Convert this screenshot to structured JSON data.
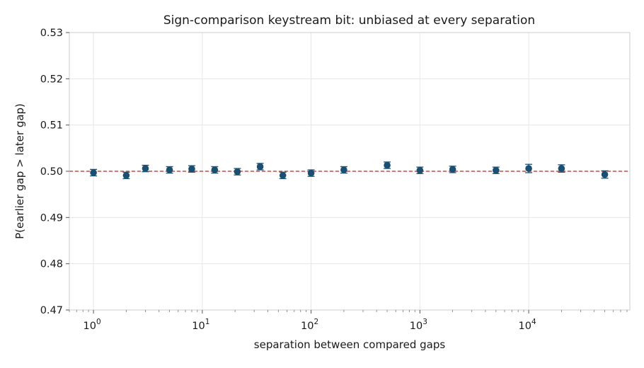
{
  "chart_data": {
    "type": "scatter",
    "title": "Sign-comparison keystream bit: unbiased at every separation",
    "xlabel": "separation between compared gaps",
    "ylabel": "P(earlier gap > later gap)",
    "xscale": "log",
    "xlim": [
      0.6,
      85000
    ],
    "ylim": [
      0.47,
      0.53
    ],
    "yticks": [
      0.47,
      0.48,
      0.49,
      0.5,
      0.51,
      0.52,
      0.53
    ],
    "ytick_labels": [
      "0.47",
      "0.48",
      "0.49",
      "0.50",
      "0.51",
      "0.52",
      "0.53"
    ],
    "xticks": [
      {
        "value": 1,
        "base": "10",
        "exp": "0"
      },
      {
        "value": 10,
        "base": "10",
        "exp": "1"
      },
      {
        "value": 100,
        "base": "10",
        "exp": "2"
      },
      {
        "value": 1000,
        "base": "10",
        "exp": "3"
      },
      {
        "value": 10000,
        "base": "10",
        "exp": "4"
      }
    ],
    "grid": true,
    "reference_line": {
      "y": 0.5,
      "style": "dashed",
      "color": "#b5524a"
    },
    "marker_color": "#1b4f72",
    "points": [
      {
        "x": 1,
        "y": 0.4997,
        "err": 0.0007
      },
      {
        "x": 2,
        "y": 0.4991,
        "err": 0.0007
      },
      {
        "x": 3,
        "y": 0.5006,
        "err": 0.0007
      },
      {
        "x": 5,
        "y": 0.5003,
        "err": 0.0007
      },
      {
        "x": 8,
        "y": 0.5005,
        "err": 0.0007
      },
      {
        "x": 13,
        "y": 0.5003,
        "err": 0.0007
      },
      {
        "x": 21,
        "y": 0.4999,
        "err": 0.0007
      },
      {
        "x": 34,
        "y": 0.501,
        "err": 0.0007
      },
      {
        "x": 55,
        "y": 0.4991,
        "err": 0.0007
      },
      {
        "x": 100,
        "y": 0.4996,
        "err": 0.0007
      },
      {
        "x": 200,
        "y": 0.5003,
        "err": 0.0007
      },
      {
        "x": 500,
        "y": 0.5013,
        "err": 0.0007
      },
      {
        "x": 1000,
        "y": 0.5002,
        "err": 0.0007
      },
      {
        "x": 2000,
        "y": 0.5004,
        "err": 0.0007
      },
      {
        "x": 5000,
        "y": 0.5002,
        "err": 0.0007
      },
      {
        "x": 10000,
        "y": 0.5006,
        "err": 0.0009
      },
      {
        "x": 20000,
        "y": 0.5006,
        "err": 0.0008
      },
      {
        "x": 50000,
        "y": 0.4993,
        "err": 0.0008
      }
    ]
  }
}
